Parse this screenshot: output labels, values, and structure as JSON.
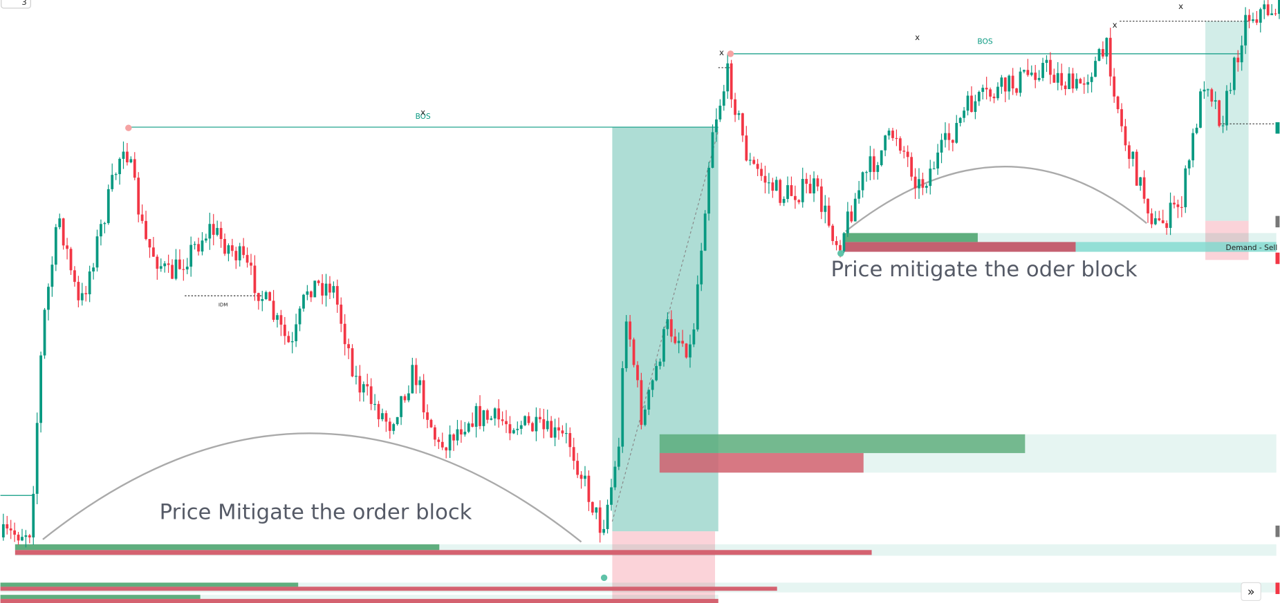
{
  "toolbar": {
    "badge": "3"
  },
  "labels": {
    "bos_left": "BOS",
    "bos_right": "BOS",
    "x_marks": [
      "x",
      "x",
      "x",
      "x",
      "x"
    ],
    "idm": "IDM",
    "annotation_left": "Price Mitigate the order block",
    "annotation_right": "Price mitigate the oder block",
    "zone_label": "Demand  -  Sell"
  },
  "nav": "»"
}
